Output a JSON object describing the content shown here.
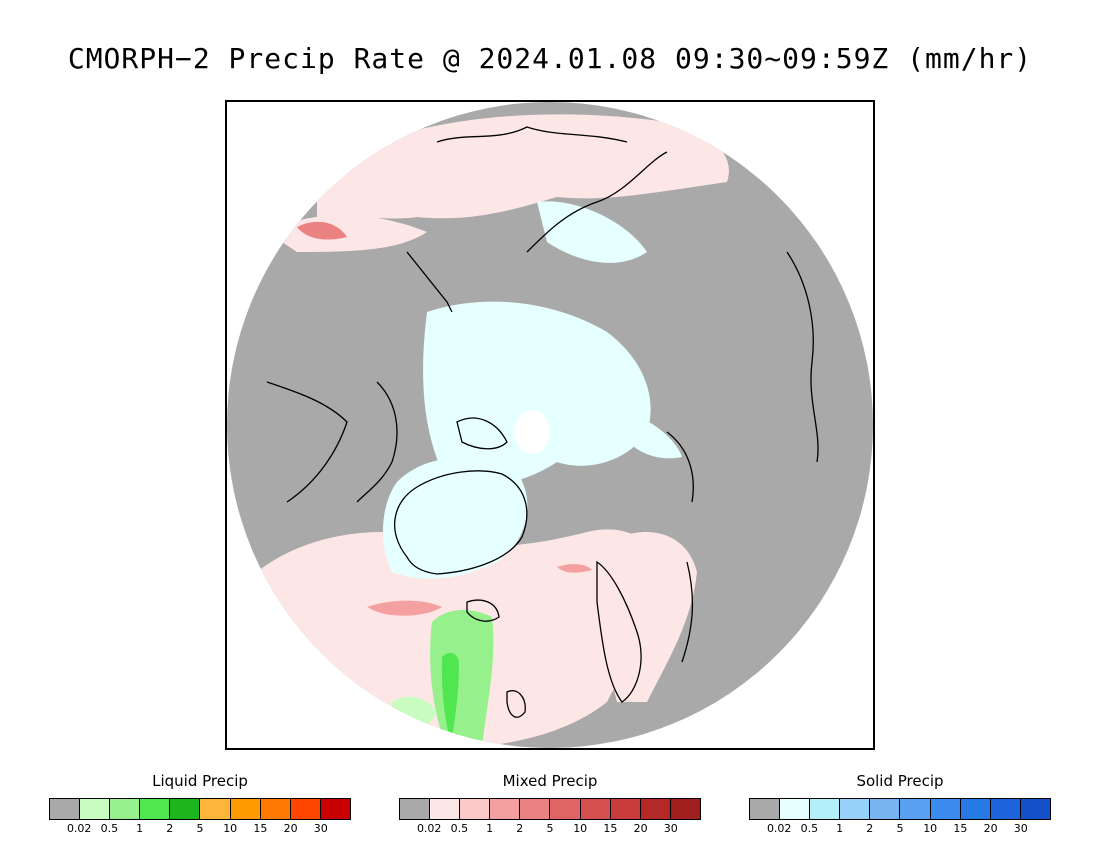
{
  "title": "CMORPH−2 Precip Rate @ 2024.01.08 09:30~09:59Z (mm/hr)",
  "legends": [
    {
      "title": "Liquid Precip",
      "colors": [
        "#a9a9a9",
        "#c8fcc0",
        "#96f08c",
        "#50e650",
        "#1eb41e",
        "#ffb43c",
        "#ff9a00",
        "#ff7800",
        "#ff4600",
        "#c80000"
      ],
      "ticks": [
        "0.02",
        "0.5",
        "1",
        "2",
        "5",
        "10",
        "15",
        "20",
        "30"
      ]
    },
    {
      "title": "Mixed Precip",
      "colors": [
        "#a9a9a9",
        "#fde6e6",
        "#fcc8c8",
        "#f5a0a0",
        "#eb8282",
        "#e16464",
        "#d75050",
        "#c83c3c",
        "#b42828",
        "#a01e1e"
      ],
      "ticks": [
        "0.02",
        "0.5",
        "1",
        "2",
        "5",
        "10",
        "15",
        "20",
        "30"
      ]
    },
    {
      "title": "Solid Precip",
      "colors": [
        "#a9a9a9",
        "#e6ffff",
        "#b4f0fa",
        "#96d2fa",
        "#78b4f0",
        "#5aa0f0",
        "#3c8cf0",
        "#2878e6",
        "#1e64dc",
        "#1450c8"
      ],
      "ticks": [
        "0.02",
        "0.5",
        "1",
        "2",
        "5",
        "10",
        "15",
        "20",
        "30"
      ]
    }
  ]
}
